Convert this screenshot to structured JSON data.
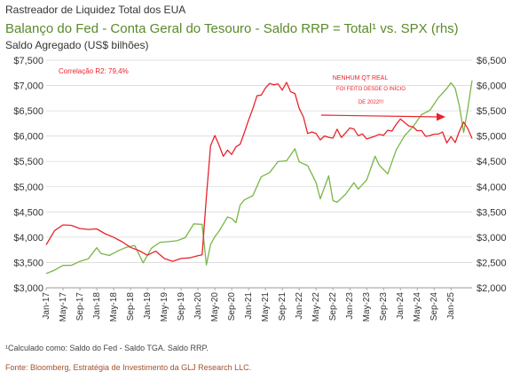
{
  "header": {
    "supertitle": "Rastreador de Liquidez Total dos EUA",
    "title": "Balanço do Fed - Conta Geral do Tesouro - Saldo RRP = Total¹ vs. SPX (rhs)",
    "subtitle": "Saldo Agregado (US$ bilhões)"
  },
  "footer": {
    "note": "¹Calculado como: Saldo do Fed - Saldo TGA. Saldo RRP.",
    "source": "Fonte: Bloomberg, Estratégia de Investimento da GLJ Research LLC."
  },
  "colors": {
    "liquidity": "#e8242b",
    "spx": "#7ab648",
    "title": "#5a8a2a",
    "annotation": "#e8242b",
    "grid": "#d9d9d9"
  },
  "chart_data": {
    "type": "line",
    "title": "Balanço do Fed - Conta Geral do Tesouro - Saldo RRP = Total¹ vs. SPX (rhs)",
    "ylabel": "Saldo Agregado (US$ bilhões)",
    "ylim_left": [
      3000,
      7500
    ],
    "ylim_right": [
      2000,
      6500
    ],
    "grid": true,
    "left_ticks": [
      "$7,500",
      "$7,000",
      "$6,500",
      "$6,000",
      "$5,500",
      "$5,000",
      "$4,500",
      "$4,000",
      "$3,500",
      "$3,000"
    ],
    "right_ticks": [
      "$6,500",
      "$6,000",
      "$5,500",
      "$5,000",
      "$4,500",
      "$4,000",
      "$3,500",
      "$3,000",
      "$2,500",
      "$2,000"
    ],
    "x_ticks": [
      "Jan-17",
      "May-17",
      "Sep-17",
      "Jan-18",
      "May-18",
      "Sep-18",
      "Jan-19",
      "May-19",
      "Sep-19",
      "Jan-20",
      "May-20",
      "Sep-20",
      "Jan-21",
      "May-21",
      "Sep-21",
      "Jan-22",
      "May-22",
      "Sep-22",
      "Jan-23",
      "May-23",
      "Sep-23",
      "Jan-24",
      "May-24",
      "Sep-24",
      "Jan-25"
    ],
    "x_range": [
      "2017-01",
      "2025-06"
    ],
    "annotations": {
      "correlation": "Correlação R2: 79,4%",
      "qt_line1": "NENHUM QT REAL",
      "qt_line2": "FOI FEITO DESDE O INÍCIO",
      "qt_line3": "DE 2022!!!"
    },
    "series": [
      {
        "axis": "left",
        "x": [
          "2017-01",
          "2017-03",
          "2017-05",
          "2017-07",
          "2017-09",
          "2017-11",
          "2018-01",
          "2018-03",
          "2018-05",
          "2018-07",
          "2018-09",
          "2018-11",
          "2019-01",
          "2019-03",
          "2019-05",
          "2019-07",
          "2019-09",
          "2019-11",
          "2020-01",
          "2020-02",
          "2020-03",
          "2020-04",
          "2020-05",
          "2020-06",
          "2020-07",
          "2020-08",
          "2020-09",
          "2020-10",
          "2020-11",
          "2020-12",
          "2021-01",
          "2021-02",
          "2021-03",
          "2021-04",
          "2021-05",
          "2021-06",
          "2021-07",
          "2021-08",
          "2021-09",
          "2021-10",
          "2021-11",
          "2021-12",
          "2022-01",
          "2022-02",
          "2022-03",
          "2022-04",
          "2022-05",
          "2022-06",
          "2022-07",
          "2022-08",
          "2022-09",
          "2022-10",
          "2022-11",
          "2022-12",
          "2023-01",
          "2023-02",
          "2023-03",
          "2023-04",
          "2023-05",
          "2023-06",
          "2023-07",
          "2023-08",
          "2023-09",
          "2023-10",
          "2023-11",
          "2023-12",
          "2024-01",
          "2024-02",
          "2024-03",
          "2024-04",
          "2024-05",
          "2024-06",
          "2024-07",
          "2024-08",
          "2024-09",
          "2024-10",
          "2024-11",
          "2024-12",
          "2025-01",
          "2025-02",
          "2025-03",
          "2025-04",
          "2025-05",
          "2025-06"
        ],
        "values": [
          3850,
          4150,
          4200,
          4250,
          4150,
          4200,
          4150,
          4050,
          4000,
          3900,
          3850,
          3700,
          3650,
          3700,
          3600,
          3550,
          3550,
          3600,
          3600,
          3700,
          4800,
          5800,
          6000,
          5800,
          5650,
          5700,
          5650,
          5750,
          5850,
          6100,
          6300,
          6550,
          6750,
          6850,
          6950,
          7050,
          7000,
          7000,
          6950,
          7050,
          6900,
          6800,
          6550,
          6400,
          6050,
          6100,
          6000,
          5950,
          6000,
          6000,
          5950,
          6100,
          6000,
          6050,
          6200,
          6100,
          6000,
          6050,
          5950,
          6000,
          5950,
          6050,
          6000,
          6150,
          6100,
          6200,
          6350,
          6250,
          6250,
          6150,
          6100,
          6100,
          6000,
          6050,
          6000,
          6050,
          6050,
          5900,
          6000,
          5850,
          6100,
          6250,
          6200,
          5950
        ]
      },
      {
        "axis": "right",
        "x": [
          "2017-01",
          "2017-03",
          "2017-05",
          "2017-07",
          "2017-09",
          "2017-11",
          "2018-01",
          "2018-02",
          "2018-04",
          "2018-06",
          "2018-08",
          "2018-10",
          "2018-12",
          "2019-02",
          "2019-04",
          "2019-06",
          "2019-08",
          "2019-10",
          "2019-12",
          "2020-02",
          "2020-03",
          "2020-04",
          "2020-05",
          "2020-06",
          "2020-08",
          "2020-09",
          "2020-10",
          "2020-11",
          "2020-12",
          "2021-02",
          "2021-04",
          "2021-06",
          "2021-08",
          "2021-10",
          "2021-12",
          "2022-01",
          "2022-03",
          "2022-05",
          "2022-06",
          "2022-08",
          "2022-09",
          "2022-10",
          "2022-12",
          "2023-02",
          "2023-03",
          "2023-05",
          "2023-07",
          "2023-08",
          "2023-10",
          "2023-12",
          "2024-02",
          "2024-04",
          "2024-06",
          "2024-08",
          "2024-10",
          "2024-12",
          "2025-01",
          "2025-02",
          "2025-03",
          "2025-04",
          "2025-05",
          "2025-06"
        ],
        "values": [
          2280,
          2370,
          2400,
          2460,
          2500,
          2620,
          2780,
          2660,
          2640,
          2720,
          2850,
          2800,
          2500,
          2760,
          2920,
          2940,
          2900,
          3000,
          3230,
          3300,
          2450,
          2850,
          3000,
          3100,
          3450,
          3350,
          3300,
          3600,
          3750,
          3850,
          4180,
          4290,
          4450,
          4550,
          4750,
          4500,
          4400,
          4050,
          3800,
          4200,
          3750,
          3650,
          3850,
          4100,
          3950,
          4150,
          4550,
          4450,
          4250,
          4750,
          5000,
          5150,
          5450,
          5500,
          5800,
          5900,
          6050,
          5950,
          5600,
          5100,
          5500,
          6100
        ]
      }
    ]
  }
}
